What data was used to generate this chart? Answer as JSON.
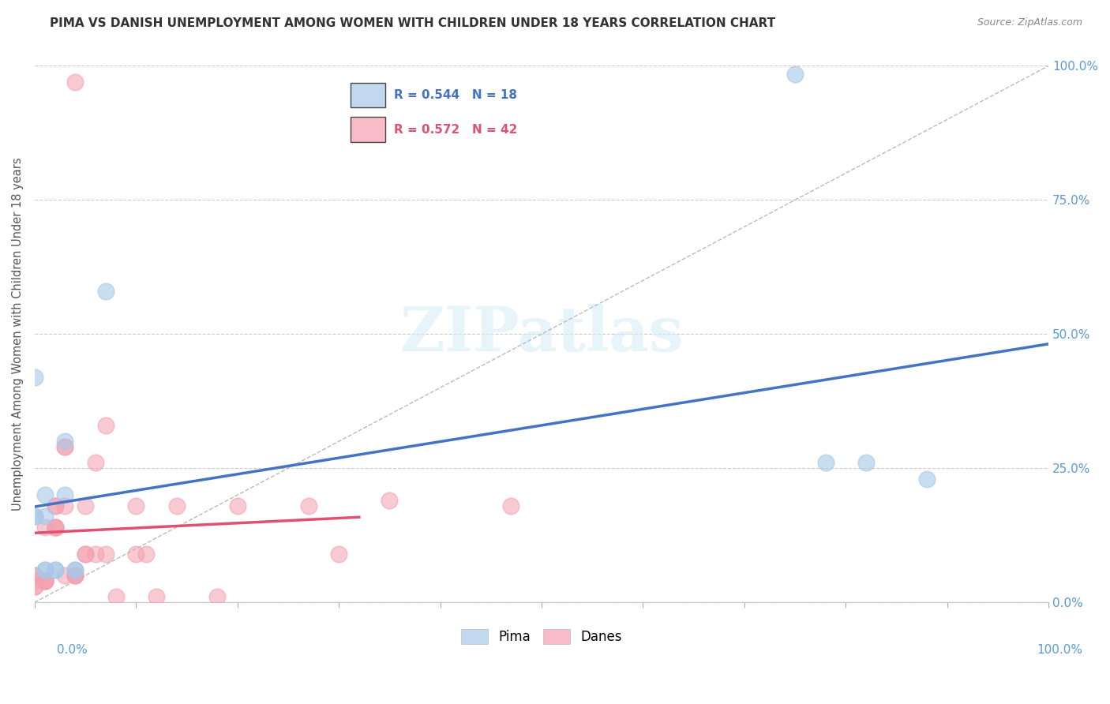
{
  "title": "PIMA VS DANISH UNEMPLOYMENT AMONG WOMEN WITH CHILDREN UNDER 18 YEARS CORRELATION CHART",
  "source": "Source: ZipAtlas.com",
  "ylabel": "Unemployment Among Women with Children Under 18 years",
  "xlim": [
    0.0,
    1.0
  ],
  "ylim": [
    0.0,
    1.0
  ],
  "yticks": [
    0.0,
    0.25,
    0.5,
    0.75,
    1.0
  ],
  "ytick_labels": [
    "0.0%",
    "25.0%",
    "50.0%",
    "75.0%",
    "100.0%"
  ],
  "pima_color": "#a8c8e8",
  "danes_color": "#f4a0b0",
  "pima_R": 0.544,
  "pima_N": 18,
  "danes_R": 0.572,
  "danes_N": 42,
  "legend_pima_label": "Pima",
  "legend_danes_label": "Danes",
  "pima_points": [
    [
      0.0,
      0.42
    ],
    [
      0.0,
      0.16
    ],
    [
      0.0,
      0.16
    ],
    [
      0.01,
      0.16
    ],
    [
      0.01,
      0.06
    ],
    [
      0.01,
      0.06
    ],
    [
      0.02,
      0.06
    ],
    [
      0.02,
      0.06
    ],
    [
      0.03,
      0.3
    ],
    [
      0.03,
      0.2
    ],
    [
      0.04,
      0.06
    ],
    [
      0.04,
      0.06
    ],
    [
      0.07,
      0.58
    ],
    [
      0.75,
      0.985
    ],
    [
      0.78,
      0.26
    ],
    [
      0.82,
      0.26
    ],
    [
      0.88,
      0.23
    ],
    [
      0.01,
      0.2
    ]
  ],
  "danes_points": [
    [
      0.04,
      0.97
    ],
    [
      0.0,
      0.05
    ],
    [
      0.0,
      0.05
    ],
    [
      0.0,
      0.04
    ],
    [
      0.01,
      0.04
    ],
    [
      0.01,
      0.04
    ],
    [
      0.01,
      0.04
    ],
    [
      0.01,
      0.04
    ],
    [
      0.01,
      0.14
    ],
    [
      0.02,
      0.14
    ],
    [
      0.02,
      0.14
    ],
    [
      0.02,
      0.14
    ],
    [
      0.02,
      0.18
    ],
    [
      0.02,
      0.18
    ],
    [
      0.03,
      0.18
    ],
    [
      0.03,
      0.29
    ],
    [
      0.03,
      0.29
    ],
    [
      0.03,
      0.05
    ],
    [
      0.04,
      0.05
    ],
    [
      0.04,
      0.05
    ],
    [
      0.04,
      0.05
    ],
    [
      0.05,
      0.18
    ],
    [
      0.05,
      0.09
    ],
    [
      0.05,
      0.09
    ],
    [
      0.06,
      0.26
    ],
    [
      0.06,
      0.09
    ],
    [
      0.07,
      0.09
    ],
    [
      0.07,
      0.33
    ],
    [
      0.08,
      0.01
    ],
    [
      0.1,
      0.18
    ],
    [
      0.1,
      0.09
    ],
    [
      0.11,
      0.09
    ],
    [
      0.12,
      0.01
    ],
    [
      0.14,
      0.18
    ],
    [
      0.18,
      0.01
    ],
    [
      0.2,
      0.18
    ],
    [
      0.27,
      0.18
    ],
    [
      0.3,
      0.09
    ],
    [
      0.35,
      0.19
    ],
    [
      0.47,
      0.18
    ],
    [
      0.0,
      0.03
    ],
    [
      0.0,
      0.03
    ]
  ],
  "pima_line_color": "#4472c4",
  "danes_line_color": "#e05070",
  "diagonal_color": "#bbbbbb",
  "legend_box_color": "#e8e8e8"
}
